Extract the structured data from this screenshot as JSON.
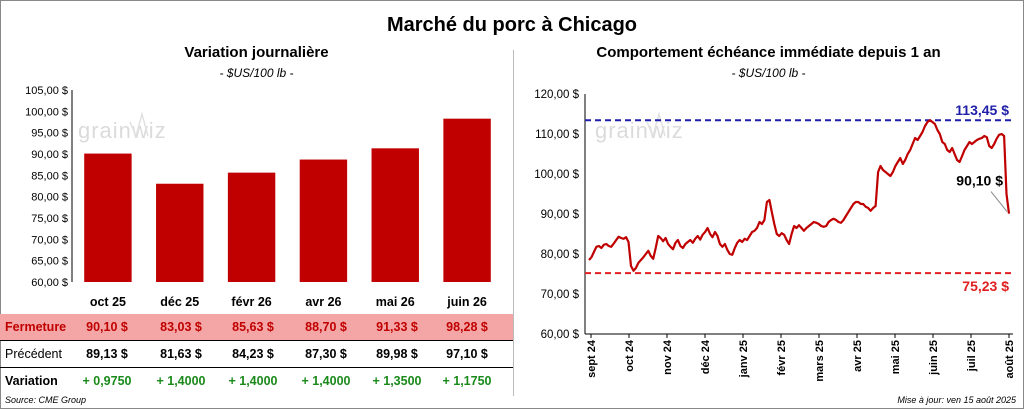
{
  "title": "Marché du porc à Chicago",
  "left_panel": {
    "title": "Variation journalière",
    "subtitle": "- $US/100 lb -"
  },
  "right_panel": {
    "title": "Comportement échéance immédiate depuis 1 an",
    "subtitle": "- $US/100 lb -"
  },
  "watermark": "grainwiz",
  "table": {
    "rows": [
      {
        "label": "Fermeture",
        "values": [
          "90,10  $",
          "83,03  $",
          "85,63  $",
          "88,70  $",
          "91,33  $",
          "98,28  $"
        ]
      },
      {
        "label": "Précédent",
        "values": [
          "89,13  $",
          "81,63  $",
          "84,23  $",
          "87,30  $",
          "89,98  $",
          "97,10  $"
        ]
      },
      {
        "label": "Variation",
        "values": [
          "+ 0,9750",
          "+ 1,4000",
          "+ 1,4000",
          "+ 1,4000",
          "+ 1,3500",
          "+ 1,1750"
        ]
      }
    ]
  },
  "footer": {
    "source": "Source: CME Group",
    "updated": "Mise à jour: ven 15 août 2025"
  },
  "colors": {
    "bar": "#c00000",
    "line": "#c00000",
    "high_line": "#1f1fa8",
    "low_line": "#e02020",
    "fermeture_bg": "#f4a6a6",
    "variation": "#1a8a1a"
  },
  "chart_data": [
    {
      "type": "bar",
      "categories": [
        "oct 25",
        "déc 25",
        "févr 26",
        "avr 26",
        "mai 26",
        "juin 26"
      ],
      "values": [
        90.1,
        83.03,
        85.63,
        88.7,
        91.33,
        98.28
      ],
      "ylim": [
        60,
        105
      ],
      "yticks": [
        60,
        65,
        70,
        75,
        80,
        85,
        90,
        95,
        100,
        105
      ],
      "ytick_labels": [
        "60,00 $",
        "65,00 $",
        "70,00 $",
        "75,00 $",
        "80,00 $",
        "85,00 $",
        "90,00 $",
        "95,00 $",
        "100,00 $",
        "105,00 $"
      ],
      "grid": false
    },
    {
      "type": "line",
      "x_labels": [
        "sept 24",
        "oct 24",
        "nov 24",
        "déc 24",
        "janv 25",
        "févr 25",
        "mars 25",
        "avr 25",
        "mai 25",
        "juin 25",
        "juil 25",
        "août 25"
      ],
      "ylim": [
        60,
        120
      ],
      "yticks": [
        60,
        70,
        80,
        90,
        100,
        110,
        120
      ],
      "ytick_labels": [
        "60,00 $",
        "70,00 $",
        "80,00 $",
        "90,00 $",
        "100,00 $",
        "110,00 $",
        "120,00 $"
      ],
      "high": {
        "value": 113.45,
        "label": "113,45 $"
      },
      "low": {
        "value": 75.23,
        "label": "75,23 $"
      },
      "last": {
        "value": 90.1,
        "label": "90,10 $"
      },
      "series": [
        {
          "values": [
            78.5,
            79.2,
            80.5,
            81.8,
            82.0,
            81.5,
            82.3,
            82.5,
            82.0,
            81.8,
            82.6,
            83.5,
            84.3,
            84.0,
            83.8,
            84.2,
            83.0,
            77.0,
            75.8,
            76.5,
            77.8,
            78.5,
            79.2,
            80.0,
            80.8,
            79.5,
            78.8,
            81.5,
            84.5,
            84.0,
            83.2,
            84.0,
            82.5,
            81.8,
            81.2,
            82.8,
            83.5,
            82.0,
            81.5,
            82.5,
            83.0,
            83.5,
            82.8,
            83.8,
            84.5,
            83.6,
            84.8,
            85.5,
            86.5,
            85.0,
            84.2,
            85.5,
            84.5,
            82.5,
            81.8,
            82.5,
            81.0,
            80.0,
            79.8,
            81.5,
            82.8,
            83.5,
            83.0,
            83.8,
            83.5,
            84.5,
            85.5,
            85.8,
            86.5,
            88.0,
            87.5,
            88.5,
            93.0,
            93.5,
            90.5,
            87.5,
            85.0,
            84.5,
            85.2,
            84.8,
            83.5,
            82.5,
            85.0,
            87.0,
            86.5,
            87.2,
            86.5,
            85.8,
            86.5,
            87.0,
            87.5,
            88.0,
            87.8,
            87.5,
            87.0,
            86.8,
            87.0,
            88.0,
            88.5,
            88.8,
            88.5,
            88.0,
            87.8,
            88.5,
            89.5,
            90.5,
            91.5,
            92.5,
            93.0,
            93.0,
            92.5,
            92.5,
            91.8,
            91.5,
            90.8,
            91.5,
            92.0,
            100.5,
            102.0,
            101.0,
            100.5,
            100.0,
            99.5,
            100.5,
            102.0,
            103.0,
            104.0,
            102.5,
            103.5,
            105.0,
            106.0,
            107.5,
            109.0,
            108.5,
            109.5,
            110.5,
            112.0,
            113.0,
            113.45,
            113.0,
            112.5,
            111.0,
            110.0,
            108.0,
            107.5,
            106.0,
            105.5,
            106.5,
            105.0,
            103.5,
            103.0,
            104.5,
            106.0,
            107.0,
            108.0,
            107.5,
            108.0,
            108.5,
            108.8,
            109.0,
            109.5,
            109.2,
            107.0,
            106.5,
            107.5,
            108.8,
            109.8,
            110.0,
            109.5,
            95.0,
            90.1
          ]
        }
      ],
      "grid": false
    }
  ]
}
